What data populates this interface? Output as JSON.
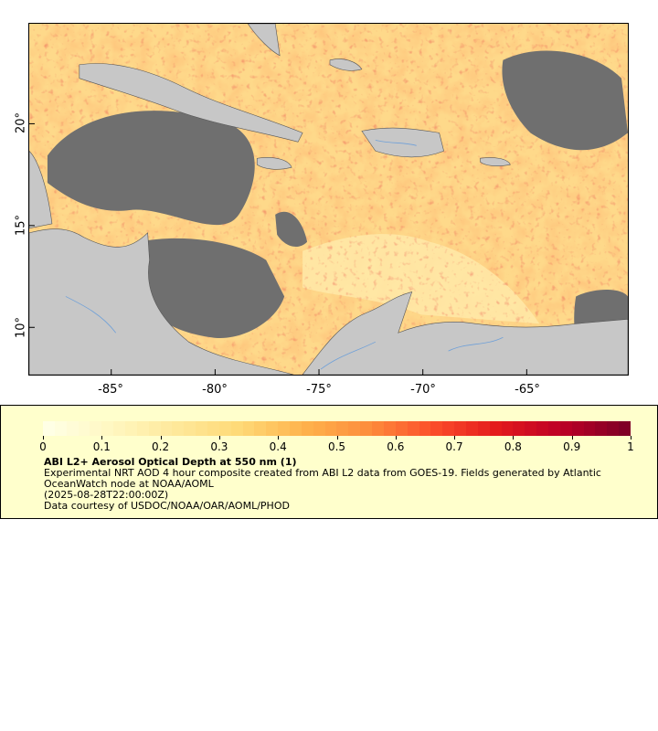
{
  "map": {
    "x_ticks": [
      "-85°",
      "-80°",
      "-75°",
      "-70°",
      "-65°"
    ],
    "y_ticks": [
      "20°",
      "15°",
      "10°"
    ],
    "colors": {
      "land": "#c7c7c7",
      "no_data": "#6f6f6f",
      "rivers": "#6fa0d8",
      "borders": "#555555"
    }
  },
  "legend": {
    "ticks": [
      "0",
      "0.1",
      "0.2",
      "0.3",
      "0.4",
      "0.5",
      "0.6",
      "0.7",
      "0.8",
      "0.9",
      "1"
    ],
    "title": "ABI L2+ Aerosol Optical Depth at 550 nm (1)",
    "description": "Experimental NRT AOD 4 hour composite created from ABI L2 data from GOES-19. Fields generated by Atlantic OceanWatch node at NOAA/AOML",
    "timestamp": "(2025-08-28T22:00:00Z)",
    "credit": "Data courtesy of USDOC/NOAA/OAR/AOML/PHOD",
    "colormap": [
      "#ffffe5",
      "#fff7c0",
      "#fee89a",
      "#fed976",
      "#feb24c",
      "#fd8d3c",
      "#fc4e2a",
      "#e31a1c",
      "#bd0026",
      "#800026"
    ]
  }
}
